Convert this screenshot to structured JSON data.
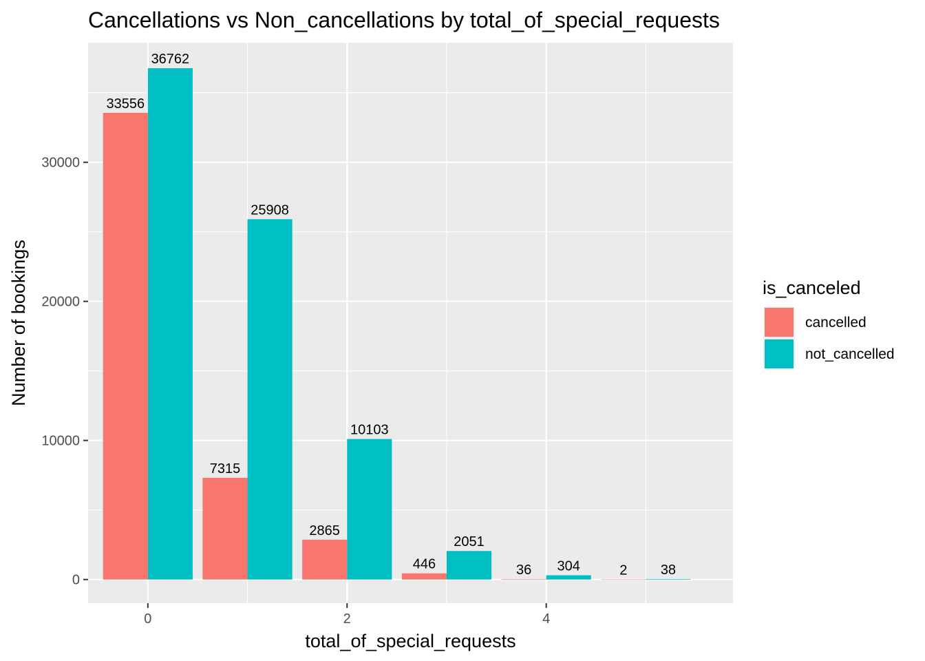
{
  "chart_data": {
    "type": "bar",
    "title": "Cancellations vs Non_cancellations by total_of_special_requests",
    "xlabel": "total_of_special_requests",
    "ylabel": "Number of bookings",
    "categories": [
      0,
      1,
      2,
      3,
      4,
      5
    ],
    "x_tick_labels": [
      "0",
      "2",
      "4"
    ],
    "y_tick_labels": [
      "0",
      "10000",
      "20000",
      "30000"
    ],
    "ylim": [
      -1700,
      38600
    ],
    "grid": true,
    "legend": {
      "title": "is_canceled",
      "position": "right"
    },
    "series": [
      {
        "name": "cancelled",
        "color": "#F8766D",
        "values": [
          33556,
          7315,
          2865,
          446,
          36,
          2
        ],
        "labels": [
          "33556",
          "7315",
          "2865",
          "446",
          "36",
          "2"
        ]
      },
      {
        "name": "not_cancelled",
        "color": "#00BFC4",
        "values": [
          36762,
          25908,
          10103,
          2051,
          304,
          38
        ],
        "labels": [
          "36762",
          "25908",
          "10103",
          "2051",
          "304",
          "38"
        ]
      }
    ]
  }
}
